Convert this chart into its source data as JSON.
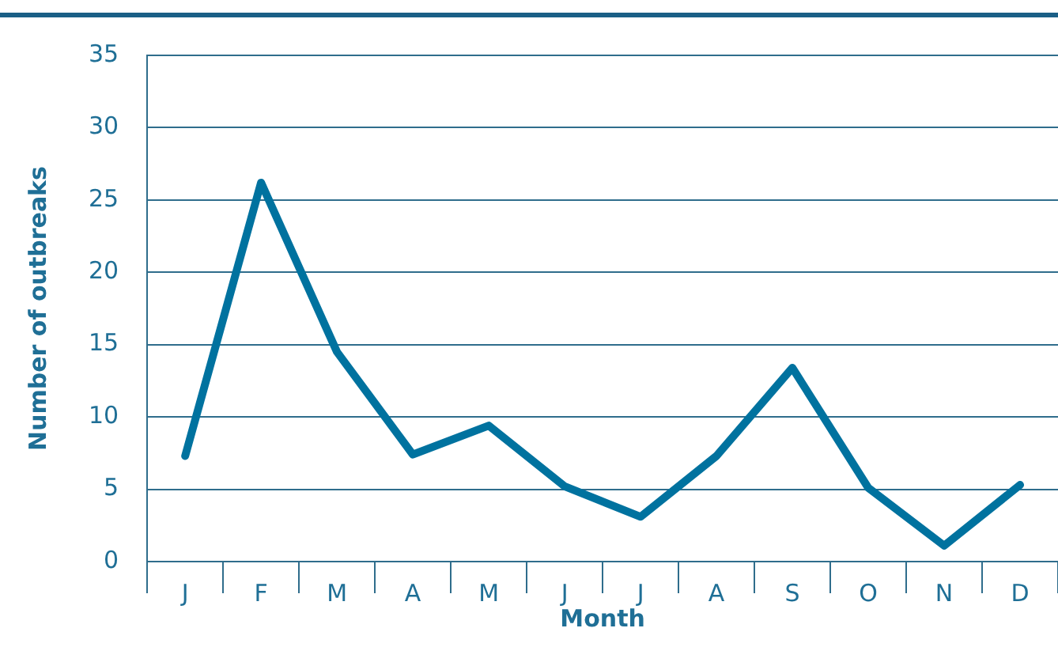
{
  "chart_data": {
    "type": "line",
    "xlabel": "Month",
    "ylabel": "Number of outbreaks",
    "categories": [
      "J",
      "F",
      "M",
      "A",
      "M",
      "J",
      "J",
      "A",
      "S",
      "O",
      "N",
      "D"
    ],
    "series": [
      {
        "color": "#00729f",
        "values": [
          7.3,
          26.2,
          14.5,
          7.4,
          9.4,
          5.2,
          3.1,
          7.3,
          13.4,
          5.1,
          1.1,
          5.3
        ]
      }
    ],
    "ylim": [
      0,
      35
    ],
    "yticks": [
      0,
      5,
      10,
      15,
      20,
      25,
      30,
      35
    ],
    "grid": "y",
    "legend": false,
    "marker": "none",
    "line_style": "solid"
  }
}
